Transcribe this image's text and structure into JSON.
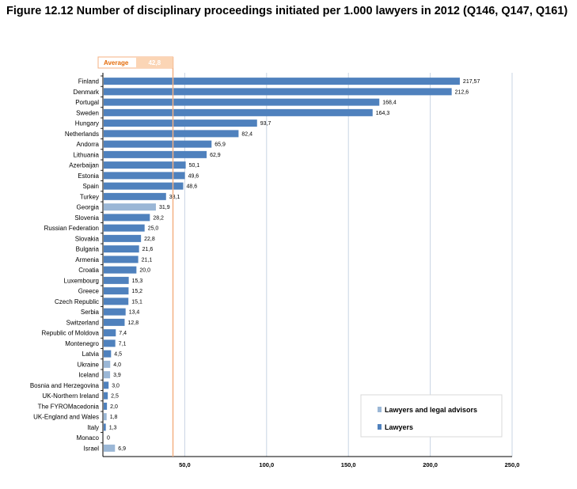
{
  "title": "Figure 12.12 Number of disciplinary proceedings initiated per 1.000 lawyers in 2012 (Q146, Q147, Q161)",
  "chart_data": {
    "type": "bar",
    "orientation": "horizontal",
    "categories": [
      "Finland",
      "Denmark",
      "Portugal",
      "Sweden",
      "Hungary",
      "Netherlands",
      "Andorra",
      "Lithuania",
      "Azerbaijan",
      "Estonia",
      "Spain",
      "Turkey",
      "Georgia",
      "Slovenia",
      "Russian Federation",
      "Slovakia",
      "Bulgaria",
      "Armenia",
      "Croatia",
      "Luxembourg",
      "Greece",
      "Czech Republic",
      "Serbia",
      "Switzerland",
      "Republic of Moldova",
      "Montenegro",
      "Latvia",
      "Ukraine",
      "Iceland",
      "Bosnia and Herzegovina",
      "UK-Northern Ireland",
      "The FYROMacedonia",
      "UK-England and Wales",
      "Italy",
      "Monaco",
      "Israel"
    ],
    "values": [
      217.57,
      212.6,
      168.4,
      164.3,
      93.7,
      82.4,
      65.9,
      62.9,
      50.1,
      49.6,
      48.6,
      38.1,
      31.9,
      28.2,
      25.0,
      22.8,
      21.6,
      21.1,
      20.0,
      15.3,
      15.2,
      15.1,
      13.4,
      12.8,
      7.4,
      7.1,
      4.5,
      4.0,
      3.9,
      3.0,
      2.5,
      2.0,
      1.8,
      1.3,
      0,
      6.9
    ],
    "value_labels": [
      "217,57",
      "212,6",
      "168,4",
      "164,3",
      "93,7",
      "82,4",
      "65,9",
      "62,9",
      "50,1",
      "49,6",
      "48,6",
      "38,1",
      "31,9",
      "28,2",
      "25,0",
      "22,8",
      "21,6",
      "21,1",
      "20,0",
      "15,3",
      "15,2",
      "15,1",
      "13,4",
      "12,8",
      "7,4",
      "7,1",
      "4,5",
      "4,0",
      "3,9",
      "3,0",
      "2,5",
      "2,0",
      "1,8",
      "1,3",
      "0",
      "6,9"
    ],
    "series_type": [
      "lawyers",
      "lawyers",
      "lawyers",
      "lawyers",
      "lawyers",
      "lawyers",
      "lawyers",
      "lawyers",
      "lawyers",
      "lawyers",
      "lawyers",
      "lawyers",
      "advisors",
      "lawyers",
      "lawyers",
      "lawyers",
      "lawyers",
      "lawyers",
      "lawyers",
      "lawyers",
      "lawyers",
      "lawyers",
      "lawyers",
      "lawyers",
      "lawyers",
      "lawyers",
      "lawyers",
      "advisors",
      "advisors",
      "lawyers",
      "lawyers",
      "lawyers",
      "advisors",
      "lawyers",
      "lawyers",
      "advisors"
    ],
    "x_ticks": [
      50,
      100,
      150,
      200,
      250
    ],
    "x_tick_labels": [
      "50,0",
      "100,0",
      "150,0",
      "200,0",
      "250,0"
    ],
    "xlim": [
      0,
      250
    ],
    "grid": true,
    "average": {
      "label": "Average",
      "value": 42.8,
      "value_label": "42,8"
    },
    "legend": {
      "placement": "bottom-right",
      "items": [
        {
          "key": "advisors",
          "label": "Lawyers and legal advisors",
          "color": "#9bb7d6"
        },
        {
          "key": "lawyers",
          "label": "Lawyers",
          "color": "#4f81bd"
        }
      ]
    },
    "colors": {
      "lawyers": "#4f81bd",
      "advisors": "#9bb7d6",
      "average": "#f4b183",
      "average_fill": "#fbd5b5"
    }
  }
}
